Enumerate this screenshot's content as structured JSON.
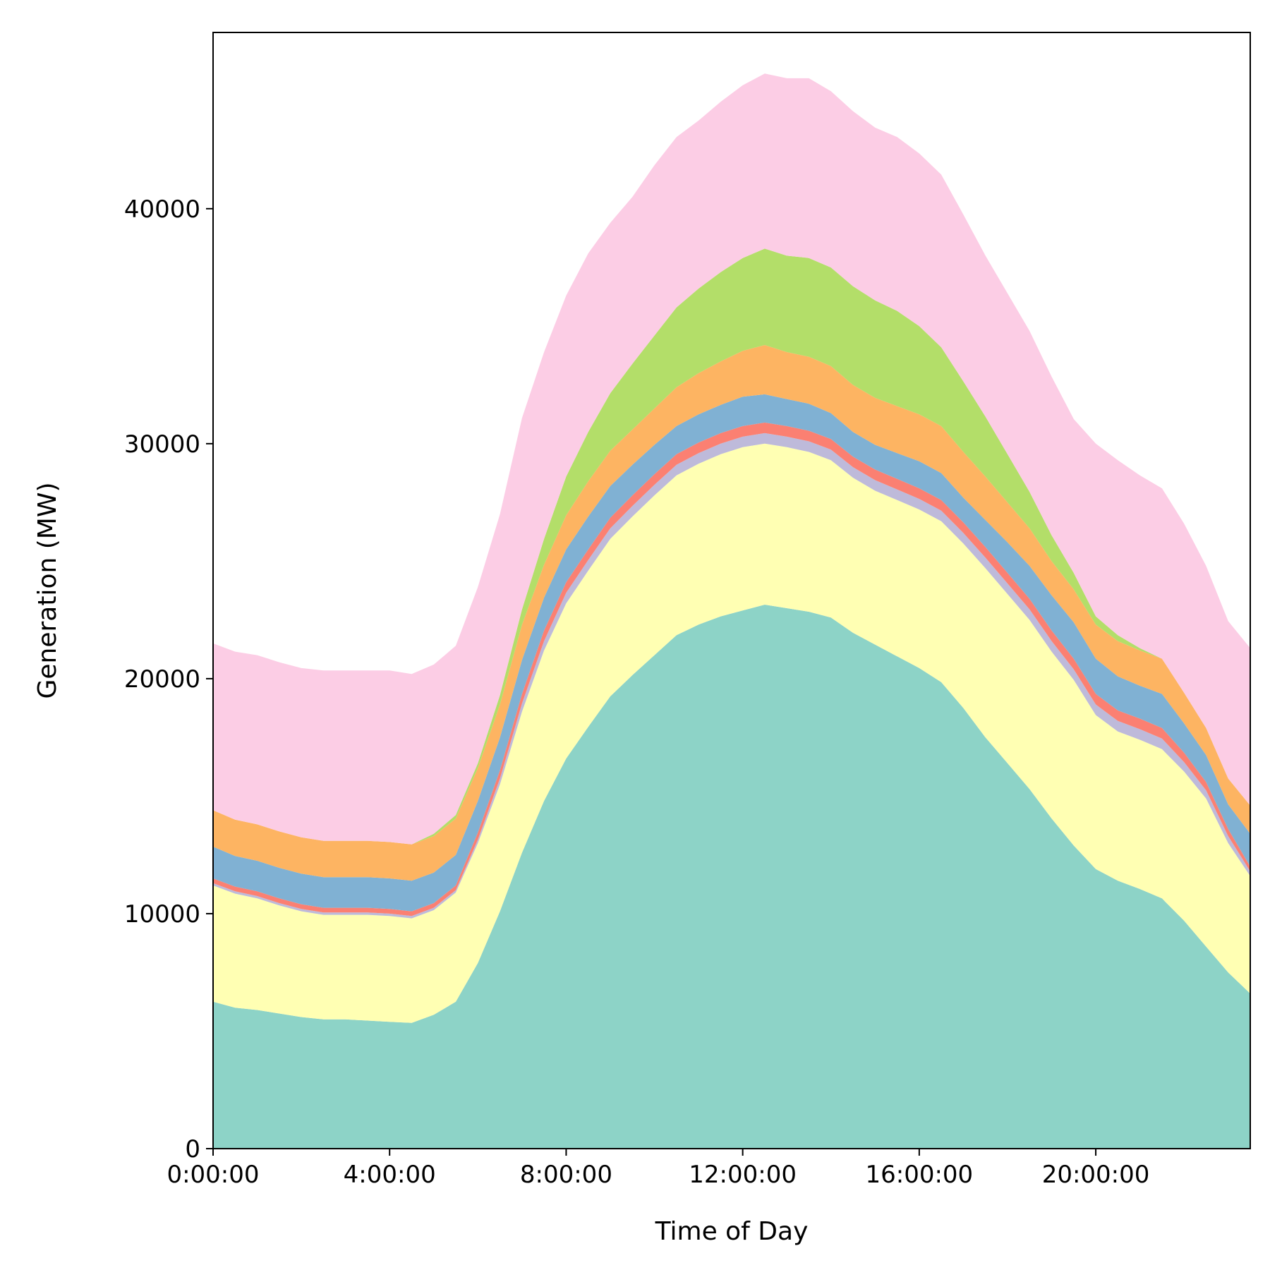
{
  "chart_data": {
    "type": "area",
    "stacked": true,
    "title": "",
    "xlabel": "Time of Day",
    "ylabel": "Generation (MW)",
    "xlim": [
      0,
      23.5
    ],
    "ylim": [
      0,
      47500
    ],
    "grid": false,
    "legend": "none",
    "x_ticks": [
      {
        "value": 0,
        "label": "0:00:00"
      },
      {
        "value": 4,
        "label": "4:00:00"
      },
      {
        "value": 8,
        "label": "8:00:00"
      },
      {
        "value": 12,
        "label": "12:00:00"
      },
      {
        "value": 16,
        "label": "16:00:00"
      },
      {
        "value": 20,
        "label": "20:00:00"
      }
    ],
    "y_ticks": [
      {
        "value": 0,
        "label": "0"
      },
      {
        "value": 10000,
        "label": "10000"
      },
      {
        "value": 20000,
        "label": "20000"
      },
      {
        "value": 30000,
        "label": "30000"
      },
      {
        "value": 40000,
        "label": "40000"
      }
    ],
    "x": [
      0,
      0.5,
      1,
      1.5,
      2,
      2.5,
      3,
      3.5,
      4,
      4.5,
      5,
      5.5,
      6,
      6.5,
      7,
      7.5,
      8,
      8.5,
      9,
      9.5,
      10,
      10.5,
      11,
      11.5,
      12,
      12.5,
      13,
      13.5,
      14,
      14.5,
      15,
      15.5,
      16,
      16.5,
      17,
      17.5,
      18,
      18.5,
      19,
      19.5,
      20,
      20.5,
      21,
      21.5,
      22,
      22.5,
      23,
      23.5
    ],
    "series": [
      {
        "color": "#8dd3c7",
        "values": [
          6250,
          6000,
          5900,
          5750,
          5600,
          5500,
          5500,
          5450,
          5400,
          5350,
          5700,
          6250,
          7900,
          10100,
          12600,
          14800,
          16600,
          17950,
          19250,
          20150,
          21000,
          21850,
          22300,
          22650,
          22900,
          23150,
          23000,
          22850,
          22600,
          21950,
          21450,
          20950,
          20450,
          19850,
          18750,
          17500,
          16400,
          15300,
          14050,
          12900,
          11900,
          11400,
          11050,
          10650,
          9700,
          8600,
          7500,
          6600
        ]
      },
      {
        "color": "#ffffb3",
        "values": [
          4950,
          4850,
          4750,
          4600,
          4500,
          4450,
          4450,
          4500,
          4500,
          4450,
          4450,
          4650,
          5100,
          5400,
          6000,
          6400,
          6600,
          6650,
          6700,
          6750,
          6800,
          6800,
          6850,
          6900,
          6950,
          6850,
          6850,
          6800,
          6700,
          6600,
          6550,
          6650,
          6750,
          6850,
          7000,
          7200,
          7200,
          7200,
          7100,
          7050,
          6550,
          6350,
          6350,
          6350,
          6350,
          6300,
          5500,
          5000
        ]
      },
      {
        "color": "#bebada",
        "values": [
          100,
          100,
          100,
          100,
          100,
          100,
          100,
          100,
          100,
          100,
          100,
          100,
          150,
          250,
          350,
          400,
          450,
          450,
          450,
          450,
          450,
          450,
          450,
          450,
          450,
          450,
          450,
          450,
          450,
          450,
          450,
          450,
          450,
          450,
          450,
          450,
          450,
          450,
          450,
          450,
          450,
          450,
          450,
          450,
          400,
          350,
          300,
          200
        ]
      },
      {
        "color": "#fb8072",
        "values": [
          200,
          200,
          200,
          200,
          200,
          200,
          200,
          200,
          200,
          200,
          200,
          200,
          300,
          350,
          400,
          450,
          450,
          450,
          450,
          450,
          450,
          450,
          450,
          450,
          450,
          450,
          450,
          450,
          450,
          450,
          450,
          450,
          450,
          450,
          450,
          450,
          450,
          450,
          450,
          450,
          450,
          450,
          450,
          450,
          400,
          350,
          300,
          200
        ]
      },
      {
        "color": "#80b1d3",
        "values": [
          1350,
          1300,
          1300,
          1300,
          1300,
          1300,
          1300,
          1300,
          1300,
          1300,
          1300,
          1300,
          1350,
          1400,
          1450,
          1400,
          1400,
          1400,
          1350,
          1300,
          1250,
          1200,
          1200,
          1200,
          1250,
          1200,
          1150,
          1150,
          1100,
          1050,
          1050,
          1100,
          1150,
          1150,
          1050,
          1150,
          1300,
          1400,
          1500,
          1550,
          1500,
          1450,
          1400,
          1450,
          1250,
          1150,
          1050,
          1400
        ]
      },
      {
        "color": "#fdb462",
        "values": [
          1550,
          1550,
          1550,
          1550,
          1550,
          1550,
          1550,
          1550,
          1550,
          1550,
          1550,
          1550,
          1400,
          1400,
          1500,
          1400,
          1450,
          1500,
          1500,
          1500,
          1550,
          1650,
          1750,
          1850,
          1950,
          2100,
          2000,
          2000,
          2000,
          2000,
          2000,
          2000,
          2000,
          2000,
          1950,
          1850,
          1700,
          1600,
          1450,
          1400,
          1450,
          1500,
          1500,
          1500,
          1300,
          1150,
          1100,
          1200
        ]
      },
      {
        "color": "#b3de69",
        "values": [
          0,
          0,
          0,
          0,
          0,
          0,
          0,
          0,
          0,
          0,
          100,
          150,
          200,
          400,
          650,
          1100,
          1650,
          2100,
          2450,
          2800,
          3100,
          3400,
          3600,
          3800,
          3950,
          4100,
          4100,
          4200,
          4200,
          4200,
          4150,
          4050,
          3750,
          3350,
          3000,
          2550,
          2050,
          1550,
          1100,
          700,
          350,
          250,
          100,
          0,
          0,
          0,
          0,
          0
        ]
      },
      {
        "color": "#fccde5",
        "values": [
          7100,
          7150,
          7200,
          7200,
          7200,
          7250,
          7250,
          7250,
          7300,
          7250,
          7200,
          7200,
          7500,
          7700,
          8150,
          7950,
          7700,
          7600,
          7250,
          7100,
          7250,
          7250,
          7150,
          7250,
          7350,
          7450,
          7550,
          7650,
          7500,
          7450,
          7350,
          7400,
          7350,
          7350,
          7100,
          6850,
          6850,
          6850,
          6750,
          6550,
          7350,
          7450,
          7350,
          7250,
          7200,
          6900,
          6700,
          6700
        ]
      }
    ]
  }
}
